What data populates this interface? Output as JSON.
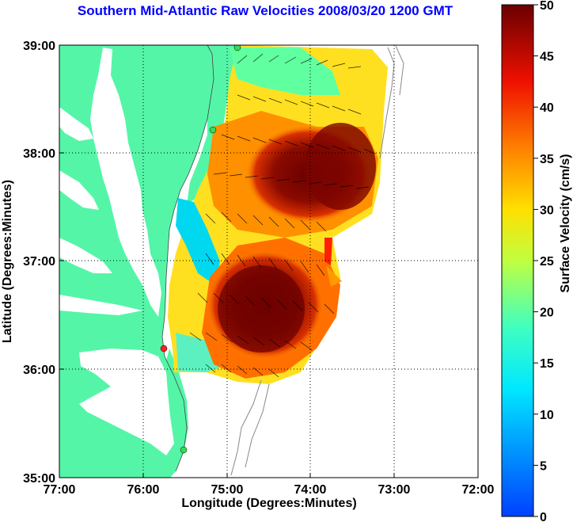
{
  "title": "Southern Mid-Atlantic Raw Velocities 2008/03/20 1200 GMT",
  "x_axis": {
    "label": "Longitude (Degrees:Minutes)",
    "ticks": [
      "77:00",
      "76:00",
      "75:00",
      "74:00",
      "73:00",
      "72:00"
    ]
  },
  "y_axis": {
    "label": "Latitude (Degrees:Minutes)",
    "ticks": [
      "39:00",
      "38:00",
      "37:00",
      "36:00",
      "35:00"
    ]
  },
  "colorbar": {
    "label": "Surface Velocity (cm/s)",
    "ticks": [
      "50",
      "45",
      "40",
      "35",
      "30",
      "25",
      "20",
      "15",
      "10",
      "5",
      "0"
    ],
    "range": [
      0,
      50
    ]
  },
  "colors": {
    "land": "#55f5a8",
    "title": "#0000ff",
    "grid": "#000000",
    "station": "#33dd55",
    "station_highlight": "#ff2020"
  },
  "grid": "dotted"
}
